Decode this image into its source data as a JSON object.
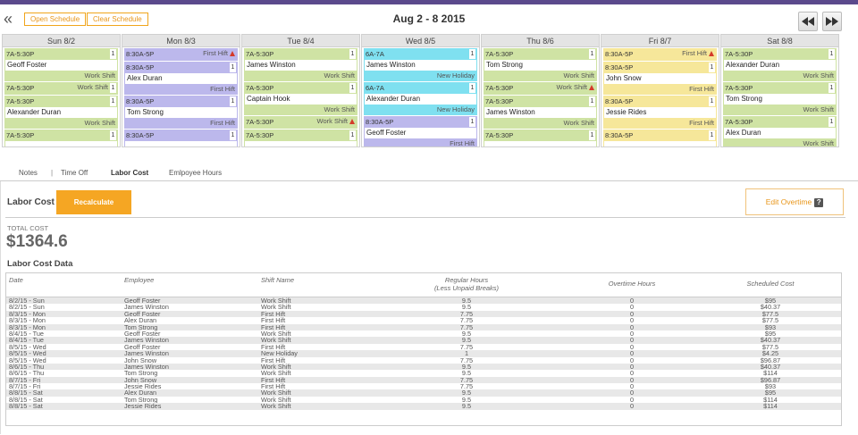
{
  "header": {
    "collapse_glyph": "«",
    "open_schedule": "Open Schedule",
    "clear_schedule": "Clear Schedule",
    "date_range": "Aug 2 - 8 2015"
  },
  "colors": {
    "accent": "#f5a623",
    "topbar": "#5b4a8c",
    "work_shift": "#cfe3a4",
    "first_shift": "#bcb8ec",
    "holiday": "#7fe0f0",
    "pending": "#f6e79a"
  },
  "calendar": {
    "days": [
      {
        "label": "Sun 8/2",
        "shifts": [
          {
            "time": "7A-5:30P",
            "count": "1",
            "name": "Geoff Foster",
            "type": "Work Shift",
            "color": "green",
            "warn": false,
            "label_top": false
          },
          {
            "time": "7A-5:30P",
            "count": "1",
            "name": "",
            "type": "Work Shift",
            "color": "green",
            "warn": true,
            "label_top": true
          },
          {
            "time": "7A-5:30P",
            "count": "1",
            "name": "Alexander Duran",
            "type": "Work Shift",
            "color": "green",
            "warn": false,
            "label_top": false
          },
          {
            "time": "7A-5:30P",
            "count": "1",
            "name": "",
            "type": "",
            "color": "green",
            "warn": false,
            "label_top": false
          }
        ]
      },
      {
        "label": "Mon 8/3",
        "shifts": [
          {
            "time": "8:30A-5P",
            "count": "",
            "name": "",
            "type": "First Hift",
            "color": "purple",
            "warn": true,
            "label_top": true
          },
          {
            "time": "8:30A-5P",
            "count": "1",
            "name": "Alex Duran",
            "type": "First Hift",
            "color": "purple",
            "warn": false,
            "label_top": false
          },
          {
            "time": "8:30A-5P",
            "count": "1",
            "name": "Tom Strong",
            "type": "First Hift",
            "color": "purple",
            "warn": false,
            "label_top": false
          },
          {
            "time": "8:30A-5P",
            "count": "1",
            "name": "",
            "type": "",
            "color": "purple",
            "warn": false,
            "label_top": false
          }
        ]
      },
      {
        "label": "Tue 8/4",
        "shifts": [
          {
            "time": "7A-5:30P",
            "count": "1",
            "name": "James Winston",
            "type": "Work Shift",
            "color": "green",
            "warn": false,
            "label_top": false
          },
          {
            "time": "7A-5:30P",
            "count": "1",
            "name": "Captain Hook",
            "type": "Work Shift",
            "color": "green",
            "warn": false,
            "label_top": false
          },
          {
            "time": "7A-5:30P",
            "count": "",
            "name": "",
            "type": "Work Shift",
            "color": "green",
            "warn": true,
            "label_top": true
          },
          {
            "time": "7A-5:30P",
            "count": "1",
            "name": "",
            "type": "",
            "color": "green",
            "warn": false,
            "label_top": false
          }
        ]
      },
      {
        "label": "Wed 8/5",
        "shifts": [
          {
            "time": "6A-7A",
            "count": "1",
            "name": "James Winston",
            "type": "New Holiday",
            "color": "cyan",
            "warn": false,
            "label_top": false
          },
          {
            "time": "6A-7A",
            "count": "1",
            "name": "Alexander Duran",
            "type": "New Holiday",
            "color": "cyan",
            "warn": false,
            "label_top": false
          },
          {
            "time": "8:30A-5P",
            "count": "1",
            "name": "Geoff Foster",
            "type": "First Hift",
            "color": "purple",
            "warn": false,
            "label_top": false
          }
        ]
      },
      {
        "label": "Thu 8/6",
        "shifts": [
          {
            "time": "7A-5:30P",
            "count": "1",
            "name": "Tom Strong",
            "type": "Work Shift",
            "color": "green",
            "warn": false,
            "label_top": false
          },
          {
            "time": "7A-5:30P",
            "count": "",
            "name": "",
            "type": "Work Shift",
            "color": "green",
            "warn": true,
            "label_top": true
          },
          {
            "time": "7A-5:30P",
            "count": "1",
            "name": "James Winston",
            "type": "Work Shift",
            "color": "green",
            "warn": false,
            "label_top": false
          },
          {
            "time": "7A-5:30P",
            "count": "1",
            "name": "",
            "type": "",
            "color": "green",
            "warn": false,
            "label_top": false
          }
        ]
      },
      {
        "label": "Fri 8/7",
        "shifts": [
          {
            "time": "8:30A-5P",
            "count": "",
            "name": "",
            "type": "First Hift",
            "color": "yellow",
            "warn": true,
            "label_top": true
          },
          {
            "time": "8:30A-5P",
            "count": "1",
            "name": "John Snow",
            "type": "First Hift",
            "color": "yellow",
            "warn": false,
            "label_top": false
          },
          {
            "time": "8:30A-5P",
            "count": "1",
            "name": "Jessie Rides",
            "type": "First Hift",
            "color": "yellow",
            "warn": false,
            "label_top": false
          },
          {
            "time": "8:30A-5P",
            "count": "1",
            "name": "",
            "type": "",
            "color": "yellow",
            "warn": false,
            "label_top": false
          }
        ]
      },
      {
        "label": "Sat 8/8",
        "shifts": [
          {
            "time": "7A-5:30P",
            "count": "1",
            "name": "Alexander Duran",
            "type": "Work Shift",
            "color": "green",
            "warn": false,
            "label_top": false
          },
          {
            "time": "7A-5:30P",
            "count": "1",
            "name": "Tom Strong",
            "type": "Work Shift",
            "color": "green",
            "warn": false,
            "label_top": false
          },
          {
            "time": "7A-5:30P",
            "count": "1",
            "name": "Alex Duran",
            "type": "Work Shift",
            "color": "green",
            "warn": false,
            "label_top": false
          }
        ]
      }
    ]
  },
  "tabs": {
    "notes": "Notes",
    "sep": "|",
    "time_off": "Time Off",
    "labor_cost": "Labor Cost",
    "employee_hours": "Emlpoyee Hours"
  },
  "labor": {
    "title": "Labor Cost",
    "recalculate": "Recalculate",
    "edit_overtime": "Edit Overtime",
    "help_glyph": "?",
    "total_label": "TOTAL COST",
    "total_value": "$1364.6",
    "data_title": "Labor Cost Data",
    "columns": {
      "date": "Date",
      "employee": "Employee",
      "shift": "Shift Name",
      "regular_1": "Regular Hours",
      "regular_2": "(Less Unpaid Breaks)",
      "overtime": "Overtime Hours",
      "cost": "Scheduled Cost"
    },
    "rows": [
      [
        "8/2/15 - Sun",
        "Geoff Foster",
        "Work Shift",
        "9.5",
        "0",
        "$95"
      ],
      [
        "8/2/15 - Sun",
        "James Winston",
        "Work Shift",
        "9.5",
        "0",
        "$40.37"
      ],
      [
        "8/3/15 - Mon",
        "Geoff Foster",
        "First Hift",
        "7.75",
        "0",
        "$77.5"
      ],
      [
        "8/3/15 - Mon",
        "Alex Duran",
        "First Hift",
        "7.75",
        "0",
        "$77.5"
      ],
      [
        "8/3/15 - Mon",
        "Tom Strong",
        "First Hift",
        "7.75",
        "0",
        "$93"
      ],
      [
        "8/4/15 - Tue",
        "Geoff Foster",
        "Work Shift",
        "9.5",
        "0",
        "$95"
      ],
      [
        "8/4/15 - Tue",
        "James Winston",
        "Work Shift",
        "9.5",
        "0",
        "$40.37"
      ],
      [
        "8/5/15 - Wed",
        "Geoff Foster",
        "First Hift",
        "7.75",
        "0",
        "$77.5"
      ],
      [
        "8/5/15 - Wed",
        "James Winston",
        "New Holiday",
        "1",
        "0",
        "$4.25"
      ],
      [
        "8/5/15 - Wed",
        "John Snow",
        "First Hift",
        "7.75",
        "0",
        "$96.87"
      ],
      [
        "8/6/15 - Thu",
        "James Winston",
        "Work Shift",
        "9.5",
        "0",
        "$40.37"
      ],
      [
        "8/6/15 - Thu",
        "Tom Strong",
        "Work Shift",
        "9.5",
        "0",
        "$114"
      ],
      [
        "8/7/15 - Fri",
        "John Snow",
        "First Hift",
        "7.75",
        "0",
        "$96.87"
      ],
      [
        "8/7/15 - Fri",
        "Jessie Rides",
        "First Hift",
        "7.75",
        "0",
        "$93"
      ],
      [
        "8/8/15 - Sat",
        "Alex Duran",
        "Work Shift",
        "9.5",
        "0",
        "$95"
      ],
      [
        "8/8/15 - Sat",
        "Tom Strong",
        "Work Shift",
        "9.5",
        "0",
        "$114"
      ],
      [
        "8/8/15 - Sat",
        "Jessie Rides",
        "Work Shift",
        "9.5",
        "0",
        "$114"
      ]
    ]
  }
}
